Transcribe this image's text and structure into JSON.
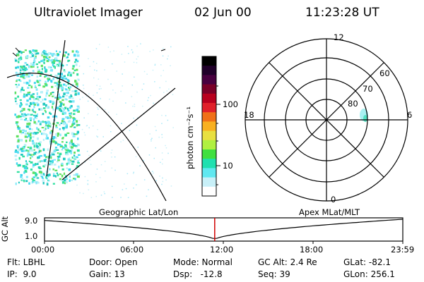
{
  "header": {
    "instrument": "Ultraviolet Imager",
    "date": "02 Jun 00",
    "time": "11:23:28 UT"
  },
  "colorbar": {
    "label": "photon cm⁻²s⁻¹",
    "ticks": [
      "100",
      "10"
    ],
    "colors": [
      "#000000",
      "#20002a",
      "#480040",
      "#7a0028",
      "#b8001e",
      "#e0202a",
      "#f07018",
      "#f8b020",
      "#e8e040",
      "#b0f040",
      "#40e040",
      "#20e0b0",
      "#60e8f0",
      "#c8f0f8",
      "#ffffff"
    ]
  },
  "polar_plot": {
    "mlt_labels": {
      "top": "12",
      "left": "18",
      "right": "6",
      "bottom": "0"
    },
    "lat_labels": [
      "60",
      "70",
      "80"
    ]
  },
  "timeline": {
    "y_axis_label": "GC Alt",
    "y_top": "9.0",
    "y_bottom": "1.0",
    "left_caption": "Geographic Lat/Lon",
    "right_caption": "Apex MLat/MLT",
    "ticks": [
      "00:00",
      "06:00",
      "12:00",
      "18:00",
      "23:59"
    ],
    "current_time_fraction": 0.475,
    "marker_color": "#d00000"
  },
  "footer": {
    "row1": [
      "Flt: LBHL",
      "Door: Open",
      "Mode: Normal",
      "GC Alt: 2.4 Re",
      "GLat: -82.1"
    ],
    "row2": [
      "IP:  9.0",
      "Gain: 13",
      "Dsp:   -12.8",
      "Seq: 39",
      "GLon: 256.1"
    ]
  }
}
